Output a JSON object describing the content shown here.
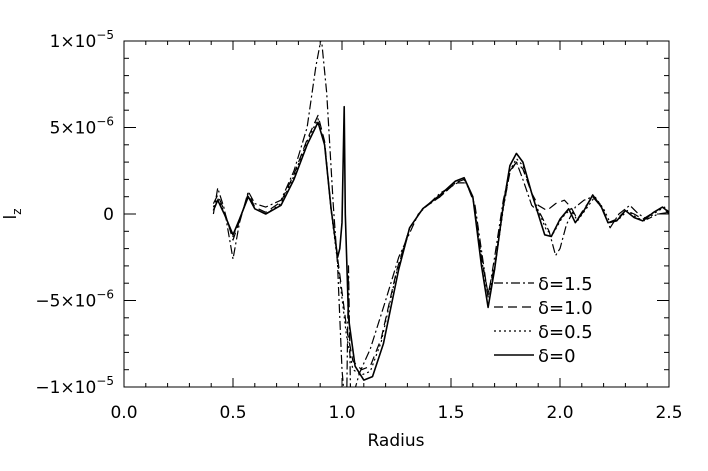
{
  "chart_data": {
    "type": "line",
    "title": "",
    "xlabel": "Radius",
    "ylabel": "l",
    "ylabel_sub": "z",
    "xlim": [
      0.0,
      2.5
    ],
    "ylim": [
      -1e-05,
      1e-05
    ],
    "grid": false,
    "legend_position": "lower-right",
    "x_ticks": [
      {
        "value": 0.0,
        "label": "0.0"
      },
      {
        "value": 0.5,
        "label": "0.5"
      },
      {
        "value": 1.0,
        "label": "1.0"
      },
      {
        "value": 1.5,
        "label": "1.5"
      },
      {
        "value": 2.0,
        "label": "2.0"
      },
      {
        "value": 2.5,
        "label": "2.5"
      }
    ],
    "y_ticks": [
      {
        "value": 1e-05,
        "mant": "1×10",
        "exp": "−5"
      },
      {
        "value": 5e-06,
        "mant": "5×10",
        "exp": "−6"
      },
      {
        "value": 0,
        "mant": "0",
        "exp": ""
      },
      {
        "value": -5e-06,
        "mant": "−5×10",
        "exp": "−6"
      },
      {
        "value": -1e-05,
        "mant": "−1×10",
        "exp": "−5"
      }
    ],
    "series": [
      {
        "name": "δ=1.5",
        "dash": "dashdot",
        "points": [
          [
            0.41,
            0.0
          ],
          [
            0.43,
            1.5e-06
          ],
          [
            0.46,
            3e-07
          ],
          [
            0.5,
            -2.6e-06
          ],
          [
            0.53,
            -5e-07
          ],
          [
            0.57,
            1.3e-06
          ],
          [
            0.6,
            6e-07
          ],
          [
            0.65,
            4e-07
          ],
          [
            0.72,
            8e-07
          ],
          [
            0.78,
            2.5e-06
          ],
          [
            0.84,
            5e-06
          ],
          [
            0.88,
            8.5e-06
          ],
          [
            0.905,
            1.02e-05
          ],
          [
            0.93,
            7e-06
          ],
          [
            0.96,
            5e-07
          ],
          [
            0.98,
            -3e-06
          ],
          [
            1.0,
            -9e-06
          ],
          [
            1.02,
            -1.2e-05
          ],
          [
            1.03,
            -3e-06
          ],
          [
            1.04,
            -1.1e-05
          ],
          [
            1.08,
            -9.2e-06
          ],
          [
            1.13,
            -7.8e-06
          ],
          [
            1.2,
            -5e-06
          ],
          [
            1.26,
            -2.5e-06
          ],
          [
            1.35,
            0.0
          ],
          [
            1.45,
            1.2e-06
          ],
          [
            1.53,
            1.8e-06
          ],
          [
            1.57,
            1.8e-06
          ],
          [
            1.61,
            5e-07
          ],
          [
            1.65,
            -3e-06
          ],
          [
            1.67,
            -4.8e-06
          ],
          [
            1.7,
            -2.5e-06
          ],
          [
            1.74,
            8e-07
          ],
          [
            1.77,
            2.5e-06
          ],
          [
            1.8,
            3e-06
          ],
          [
            1.83,
            2e-06
          ],
          [
            1.87,
            5e-07
          ],
          [
            1.91,
            0.0
          ],
          [
            1.95,
            -1e-06
          ],
          [
            1.98,
            -2.4e-06
          ],
          [
            2.0,
            -2e-06
          ],
          [
            2.03,
            -6e-07
          ],
          [
            2.07,
            4e-07
          ],
          [
            2.11,
            8e-07
          ],
          [
            2.15,
            1e-06
          ],
          [
            2.19,
            4e-07
          ],
          [
            2.23,
            -8e-07
          ],
          [
            2.27,
            0.0
          ],
          [
            2.32,
            5e-07
          ],
          [
            2.36,
            0.0
          ],
          [
            2.4,
            -3e-07
          ],
          [
            2.45,
            0.0
          ],
          [
            2.5,
            1e-07
          ]
        ]
      },
      {
        "name": "δ=1.0",
        "dash": "dashed",
        "points": [
          [
            0.41,
            6e-07
          ],
          [
            0.43,
            1.1e-06
          ],
          [
            0.46,
            2e-07
          ],
          [
            0.5,
            -1.5e-06
          ],
          [
            0.53,
            -4e-07
          ],
          [
            0.57,
            1.2e-06
          ],
          [
            0.6,
            4e-07
          ],
          [
            0.65,
            1e-07
          ],
          [
            0.72,
            7e-07
          ],
          [
            0.78,
            2.3e-06
          ],
          [
            0.84,
            4.3e-06
          ],
          [
            0.89,
            5.7e-06
          ],
          [
            0.92,
            4.2e-06
          ],
          [
            0.95,
            3e-07
          ],
          [
            0.99,
            -3.5e-06
          ],
          [
            1.02,
            -6.5e-06
          ],
          [
            1.05,
            -8.5e-06
          ],
          [
            1.09,
            -9e-06
          ],
          [
            1.13,
            -8.8e-06
          ],
          [
            1.18,
            -7.2e-06
          ],
          [
            1.25,
            -3.3e-06
          ],
          [
            1.31,
            -8e-07
          ],
          [
            1.37,
            3e-07
          ],
          [
            1.45,
            1e-06
          ],
          [
            1.52,
            1.8e-06
          ],
          [
            1.56,
            2e-06
          ],
          [
            1.6,
            1e-06
          ],
          [
            1.64,
            -2.5e-06
          ],
          [
            1.67,
            -4.6e-06
          ],
          [
            1.7,
            -3e-06
          ],
          [
            1.74,
            4e-07
          ],
          [
            1.77,
            2.4e-06
          ],
          [
            1.8,
            3e-06
          ],
          [
            1.83,
            2.6e-06
          ],
          [
            1.87,
            1.2e-06
          ],
          [
            1.9,
            5e-07
          ],
          [
            1.94,
            2e-07
          ],
          [
            1.98,
            6e-07
          ],
          [
            2.02,
            8e-07
          ],
          [
            2.05,
            4e-07
          ],
          [
            2.08,
            -3e-07
          ],
          [
            2.11,
            3e-07
          ],
          [
            2.15,
            1e-06
          ],
          [
            2.19,
            5e-07
          ],
          [
            2.22,
            -5e-07
          ],
          [
            2.26,
            -3e-07
          ],
          [
            2.3,
            2e-07
          ],
          [
            2.34,
            0.0
          ],
          [
            2.38,
            -3e-07
          ],
          [
            2.43,
            1e-07
          ],
          [
            2.47,
            4e-07
          ],
          [
            2.5,
            0.0
          ]
        ]
      },
      {
        "name": "δ=0.5",
        "dash": "dotted",
        "points": [
          [
            0.41,
            4e-07
          ],
          [
            0.43,
            9e-07
          ],
          [
            0.46,
            1e-07
          ],
          [
            0.5,
            -1.3e-06
          ],
          [
            0.53,
            -3e-07
          ],
          [
            0.57,
            1e-06
          ],
          [
            0.6,
            3e-07
          ],
          [
            0.65,
            0.0
          ],
          [
            0.72,
            6e-07
          ],
          [
            0.78,
            2.2e-06
          ],
          [
            0.84,
            4.2e-06
          ],
          [
            0.89,
            5.5e-06
          ],
          [
            0.92,
            4e-06
          ],
          [
            0.95,
            2e-07
          ],
          [
            0.99,
            -3.8e-06
          ],
          [
            1.02,
            -7e-06
          ],
          [
            1.05,
            -9e-06
          ],
          [
            1.09,
            -9.3e-06
          ],
          [
            1.13,
            -9.1e-06
          ],
          [
            1.18,
            -7.4e-06
          ],
          [
            1.25,
            -3.4e-06
          ],
          [
            1.31,
            -8e-07
          ],
          [
            1.37,
            3e-07
          ],
          [
            1.45,
            1e-06
          ],
          [
            1.52,
            1.8e-06
          ],
          [
            1.56,
            2e-06
          ],
          [
            1.6,
            1e-06
          ],
          [
            1.64,
            -2.6e-06
          ],
          [
            1.67,
            -4.8e-06
          ],
          [
            1.7,
            -3.2e-06
          ],
          [
            1.74,
            3e-07
          ],
          [
            1.77,
            2.5e-06
          ],
          [
            1.8,
            3.2e-06
          ],
          [
            1.83,
            2.8e-06
          ],
          [
            1.87,
            1.2e-06
          ],
          [
            1.9,
            2e-07
          ],
          [
            1.94,
            -1e-06
          ],
          [
            1.97,
            -1.1e-06
          ],
          [
            2.01,
            -2e-07
          ],
          [
            2.05,
            3e-07
          ],
          [
            2.08,
            -4e-07
          ],
          [
            2.12,
            3e-07
          ],
          [
            2.16,
            1e-06
          ],
          [
            2.2,
            3e-07
          ],
          [
            2.23,
            -5e-07
          ],
          [
            2.27,
            -3e-07
          ],
          [
            2.31,
            2e-07
          ],
          [
            2.35,
            -2e-07
          ],
          [
            2.39,
            -4e-07
          ],
          [
            2.44,
            1e-07
          ],
          [
            2.48,
            4e-07
          ],
          [
            2.5,
            1e-07
          ]
        ]
      },
      {
        "name": "δ=0",
        "dash": "solid",
        "points": [
          [
            0.41,
            2e-07
          ],
          [
            0.43,
            8e-07
          ],
          [
            0.46,
            0.0
          ],
          [
            0.5,
            -1.2e-06
          ],
          [
            0.53,
            -3e-07
          ],
          [
            0.57,
            1e-06
          ],
          [
            0.6,
            3e-07
          ],
          [
            0.65,
            0.0
          ],
          [
            0.72,
            5e-07
          ],
          [
            0.78,
            2e-06
          ],
          [
            0.84,
            4e-06
          ],
          [
            0.89,
            5.3e-06
          ],
          [
            0.92,
            4e-06
          ],
          [
            0.95,
            3e-07
          ],
          [
            0.98,
            -2.5e-06
          ],
          [
            0.99,
            -2e-06
          ],
          [
            1.0,
            -5e-07
          ],
          [
            1.01,
            6.2e-06
          ],
          [
            1.015,
            0.0
          ],
          [
            1.03,
            -6e-06
          ],
          [
            1.06,
            -8.8e-06
          ],
          [
            1.1,
            -9.6e-06
          ],
          [
            1.14,
            -9.4e-06
          ],
          [
            1.19,
            -7.5e-06
          ],
          [
            1.26,
            -3.2e-06
          ],
          [
            1.31,
            -8e-07
          ],
          [
            1.37,
            3e-07
          ],
          [
            1.45,
            1.1e-06
          ],
          [
            1.52,
            1.9e-06
          ],
          [
            1.56,
            2.1e-06
          ],
          [
            1.6,
            1e-06
          ],
          [
            1.64,
            -3e-06
          ],
          [
            1.67,
            -5.4e-06
          ],
          [
            1.7,
            -3.2e-06
          ],
          [
            1.74,
            5e-07
          ],
          [
            1.77,
            2.8e-06
          ],
          [
            1.8,
            3.5e-06
          ],
          [
            1.83,
            3e-06
          ],
          [
            1.87,
            1.2e-06
          ],
          [
            1.9,
            0.0
          ],
          [
            1.93,
            -1.2e-06
          ],
          [
            1.96,
            -1.3e-06
          ],
          [
            2.0,
            -3e-07
          ],
          [
            2.04,
            3e-07
          ],
          [
            2.07,
            -5e-07
          ],
          [
            2.11,
            2e-07
          ],
          [
            2.15,
            1.1e-06
          ],
          [
            2.19,
            4e-07
          ],
          [
            2.22,
            -5e-07
          ],
          [
            2.26,
            -4e-07
          ],
          [
            2.3,
            2e-07
          ],
          [
            2.34,
            -2e-07
          ],
          [
            2.38,
            -4e-07
          ],
          [
            2.43,
            1e-07
          ],
          [
            2.47,
            4e-07
          ],
          [
            2.5,
            1e-07
          ]
        ]
      }
    ]
  }
}
